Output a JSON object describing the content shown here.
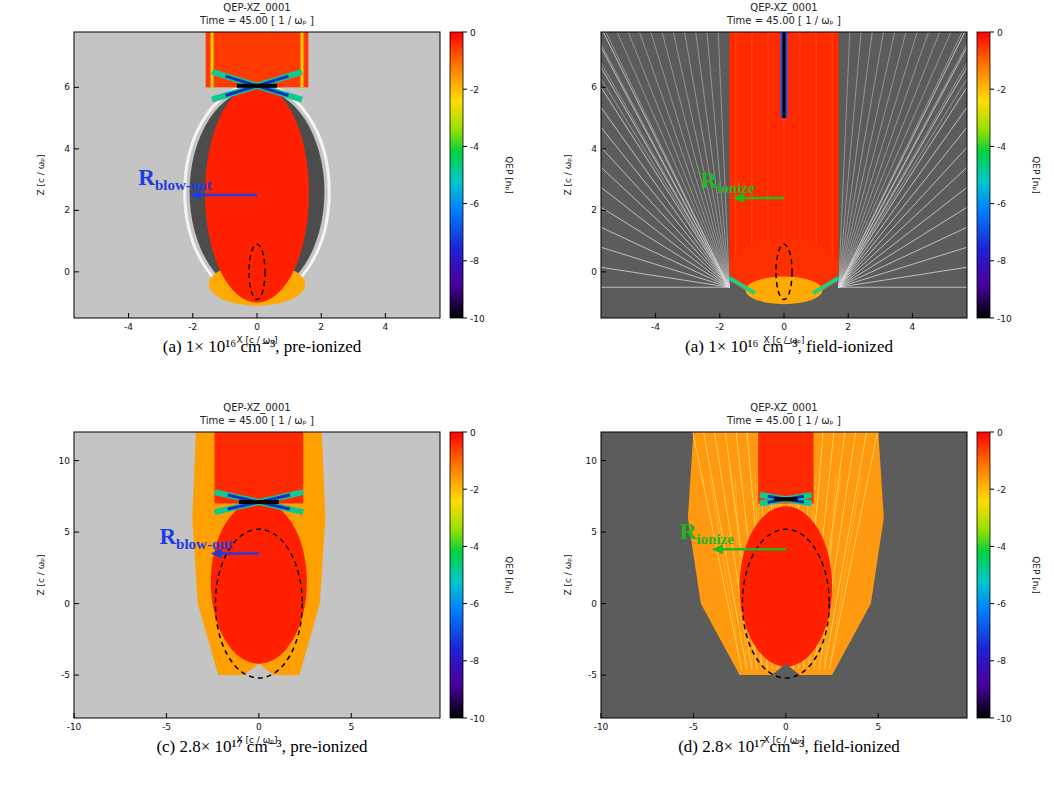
{
  "chart_data": [
    {
      "type": "heatmap",
      "title": "QEP-XZ_0001",
      "subtitle": "Time =  45.00 [ 1 / ωₚ ]",
      "x_label": "X [c / ωₚ]",
      "y_label": "Z [c / ωₚ]",
      "xlim": [
        -5.7,
        5.7
      ],
      "xticks": [
        -4,
        -2,
        0,
        2,
        4
      ],
      "ylim": [
        -1.5,
        7.8
      ],
      "yticks": [
        0,
        2,
        4,
        6
      ],
      "colorbar": {
        "label": "QEP [nₚ]",
        "range": [
          -10,
          0
        ],
        "ticks": [
          0,
          -2,
          -4,
          -6,
          -8,
          -10
        ]
      },
      "annotation": {
        "text": "R",
        "subscript": "blow-out",
        "color": "#1f3ce0"
      },
      "caption": "(a) 1× 10¹⁶ cm⁻³, pre-ionized"
    },
    {
      "type": "heatmap",
      "title": "QEP-XZ_0001",
      "subtitle": "Time =  45.00 [ 1 / ωₚ ]",
      "x_label": "X [c / ωₚ]",
      "y_label": "Z [c / ωₚ]",
      "xlim": [
        -5.7,
        5.7
      ],
      "xticks": [
        -4,
        -2,
        0,
        2,
        4
      ],
      "ylim": [
        -1.5,
        7.8
      ],
      "yticks": [
        0,
        2,
        4,
        6
      ],
      "colorbar": {
        "label": "QEP [nₚ]",
        "range": [
          -10,
          0
        ],
        "ticks": [
          0,
          -2,
          -4,
          -6,
          -8,
          -10
        ]
      },
      "annotation": {
        "text": "R",
        "subscript": "ionize",
        "color": "#22b822"
      },
      "caption": "(a) 1× 10¹⁶ cm⁻³, field-ionized"
    },
    {
      "type": "heatmap",
      "title": "QEP-XZ_0001",
      "subtitle": "Time =  45.00 [ 1 / ωₚ ]",
      "x_label": "X [c / ωₚ]",
      "y_label": "Z [c / ωₚ]",
      "xlim": [
        -10,
        9.8
      ],
      "xticks": [
        -10,
        -5,
        0,
        5
      ],
      "ylim": [
        -8,
        12
      ],
      "yticks": [
        -5,
        0,
        5,
        10
      ],
      "colorbar": {
        "label": "QEP [nₚ]",
        "range": [
          -10,
          0
        ],
        "ticks": [
          0,
          -2,
          -4,
          -6,
          -8,
          -10
        ]
      },
      "annotation": {
        "text": "R",
        "subscript": "blow-out",
        "color": "#1f3ce0"
      },
      "caption": "(c) 2.8× 10¹⁷ cm⁻³, pre-ionized"
    },
    {
      "type": "heatmap",
      "title": "QEP-XZ_0001",
      "subtitle": "Time =  45.00 [ 1 / ωₚ ]",
      "x_label": "X [c / ωₚ]",
      "y_label": "Z [c / ωₚ]",
      "xlim": [
        -10,
        9.8
      ],
      "xticks": [
        -10,
        -5,
        0,
        5
      ],
      "ylim": [
        -8,
        12
      ],
      "yticks": [
        -5,
        0,
        5,
        10
      ],
      "colorbar": {
        "label": "QEP [nₚ]",
        "range": [
          -10,
          0
        ],
        "ticks": [
          0,
          -2,
          -4,
          -6,
          -8,
          -10
        ]
      },
      "annotation": {
        "text": "R",
        "subscript": "ionize",
        "color": "#22b822"
      },
      "caption": "(d) 2.8× 10¹⁷ cm⁻³, field-ionized"
    }
  ]
}
